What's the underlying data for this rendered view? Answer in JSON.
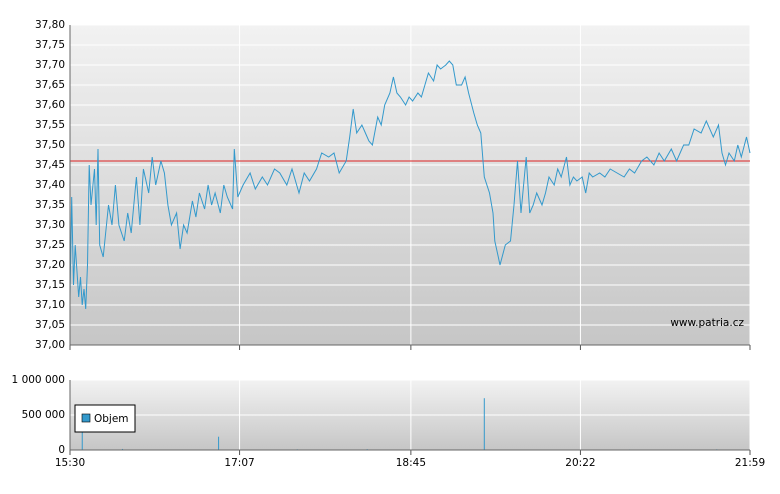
{
  "chart_data": [
    {
      "type": "line",
      "xlim": [
        930,
        1319
      ],
      "ylim": [
        37.0,
        37.8
      ],
      "yticks": [
        {
          "value": 37.0,
          "label": "37,00"
        },
        {
          "value": 37.05,
          "label": "37,05"
        },
        {
          "value": 37.1,
          "label": "37,10"
        },
        {
          "value": 37.15,
          "label": "37,15"
        },
        {
          "value": 37.2,
          "label": "37,20"
        },
        {
          "value": 37.25,
          "label": "37,25"
        },
        {
          "value": 37.3,
          "label": "37,30"
        },
        {
          "value": 37.35,
          "label": "37,35"
        },
        {
          "value": 37.4,
          "label": "37,40"
        },
        {
          "value": 37.45,
          "label": "37,45"
        },
        {
          "value": 37.5,
          "label": "37,50"
        },
        {
          "value": 37.55,
          "label": "37,55"
        },
        {
          "value": 37.6,
          "label": "37,60"
        },
        {
          "value": 37.65,
          "label": "37,65"
        },
        {
          "value": 37.7,
          "label": "37,70"
        },
        {
          "value": 37.75,
          "label": "37,75"
        },
        {
          "value": 37.8,
          "label": "37,80"
        }
      ],
      "grid": true,
      "reference_line": {
        "value": 37.46,
        "color": "#dd2222"
      },
      "watermark": "www.patria.cz",
      "x": [
        930,
        931,
        932,
        933,
        935,
        936,
        937,
        938,
        939,
        940,
        941,
        942,
        944,
        945,
        946,
        947,
        949,
        952,
        954,
        956,
        958,
        961,
        963,
        965,
        968,
        970,
        972,
        975,
        977,
        979,
        982,
        984,
        986,
        988,
        991,
        993,
        995,
        997,
        1000,
        1002,
        1004,
        1007,
        1009,
        1011,
        1013,
        1016,
        1018,
        1020,
        1023,
        1024,
        1026,
        1029,
        1033,
        1036,
        1040,
        1043,
        1047,
        1050,
        1054,
        1057,
        1061,
        1064,
        1067,
        1071,
        1074,
        1078,
        1081,
        1084,
        1088,
        1090,
        1092,
        1094,
        1097,
        1099,
        1101,
        1103,
        1106,
        1108,
        1110,
        1113,
        1115,
        1117,
        1119,
        1122,
        1124,
        1126,
        1129,
        1131,
        1133,
        1135,
        1138,
        1140,
        1142,
        1145,
        1147,
        1149,
        1151,
        1154,
        1156,
        1158,
        1161,
        1163,
        1165,
        1167,
        1170,
        1172,
        1173,
        1175,
        1176,
        1179,
        1182,
        1184,
        1186,
        1188,
        1191,
        1193,
        1195,
        1197,
        1200,
        1202,
        1204,
        1207,
        1209,
        1211,
        1214,
        1216,
        1218,
        1220,
        1223,
        1225,
        1227,
        1229,
        1233,
        1236,
        1239,
        1243,
        1247,
        1250,
        1253,
        1257,
        1260,
        1264,
        1267,
        1270,
        1274,
        1277,
        1281,
        1284,
        1287,
        1291,
        1294,
        1298,
        1301,
        1303,
        1305,
        1307,
        1310,
        1312,
        1314,
        1317,
        1319
      ],
      "series": [
        {
          "color": "#3399cc",
          "values": [
            37.12,
            37.37,
            37.15,
            37.25,
            37.12,
            37.17,
            37.1,
            37.14,
            37.09,
            37.2,
            37.45,
            37.35,
            37.44,
            37.3,
            37.49,
            37.25,
            37.22,
            37.35,
            37.3,
            37.4,
            37.3,
            37.26,
            37.33,
            37.28,
            37.42,
            37.3,
            37.44,
            37.38,
            37.47,
            37.4,
            37.46,
            37.43,
            37.35,
            37.3,
            37.33,
            37.24,
            37.3,
            37.28,
            37.36,
            37.32,
            37.38,
            37.34,
            37.4,
            37.35,
            37.38,
            37.33,
            37.4,
            37.37,
            37.34,
            37.49,
            37.37,
            37.4,
            37.43,
            37.39,
            37.42,
            37.4,
            37.44,
            37.43,
            37.4,
            37.44,
            37.38,
            37.43,
            37.41,
            37.44,
            37.48,
            37.47,
            37.48,
            37.43,
            37.46,
            37.52,
            37.59,
            37.53,
            37.55,
            37.53,
            37.51,
            37.5,
            37.57,
            37.55,
            37.6,
            37.63,
            37.67,
            37.63,
            37.62,
            37.6,
            37.62,
            37.61,
            37.63,
            37.62,
            37.65,
            37.68,
            37.66,
            37.7,
            37.69,
            37.7,
            37.71,
            37.7,
            37.65,
            37.65,
            37.67,
            37.63,
            37.58,
            37.55,
            37.53,
            37.42,
            37.38,
            37.33,
            37.26,
            37.22,
            37.2,
            37.25,
            37.26,
            37.35,
            37.46,
            37.33,
            37.47,
            37.33,
            37.35,
            37.38,
            37.35,
            37.38,
            37.42,
            37.4,
            37.44,
            37.42,
            37.47,
            37.4,
            37.42,
            37.41,
            37.42,
            37.38,
            37.43,
            37.42,
            37.43,
            37.42,
            37.44,
            37.43,
            37.42,
            37.44,
            37.43,
            37.46,
            37.47,
            37.45,
            37.48,
            37.46,
            37.49,
            37.46,
            37.5,
            37.5,
            37.54,
            37.53,
            37.56,
            37.52,
            37.55,
            37.48,
            37.45,
            37.48,
            37.46,
            37.5,
            37.47,
            37.52,
            37.48
          ]
        }
      ]
    },
    {
      "type": "bar",
      "xlim": [
        930,
        1319
      ],
      "ylim": [
        0,
        1000000
      ],
      "yticks": [
        0,
        {
          "value": 500000,
          "label": "500 000"
        },
        {
          "value": 1000000,
          "label": "1 000 000"
        }
      ],
      "xticks": [
        {
          "value": 930,
          "label": "15:30"
        },
        {
          "value": 1027,
          "label": "17:07"
        },
        {
          "value": 1125,
          "label": "18:45"
        },
        {
          "value": 1222,
          "label": "20:22"
        },
        {
          "value": 1319,
          "label": "21:59"
        }
      ],
      "grid": true,
      "legend": "top-left",
      "x": [
        937,
        960,
        1015,
        1060,
        1100,
        1167,
        1250,
        1300
      ],
      "series": [
        {
          "name": "Objem",
          "color": "#3399cc",
          "values": [
            270000,
            15000,
            190000,
            10000,
            12000,
            740000,
            8000,
            10000
          ]
        }
      ]
    }
  ]
}
